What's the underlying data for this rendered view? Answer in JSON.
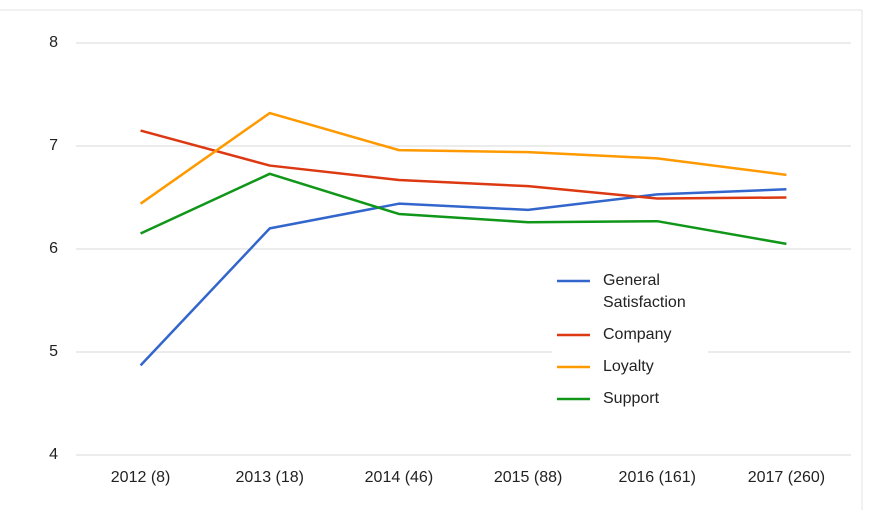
{
  "chart_data": {
    "type": "line",
    "categories": [
      "2012 (8)",
      "2013 (18)",
      "2014 (46)",
      "2015 (88)",
      "2016 (161)",
      "2017 (260)"
    ],
    "series": [
      {
        "name": "General Satisfaction",
        "color": "#3366cc",
        "values": [
          4.87,
          6.2,
          6.44,
          6.38,
          6.53,
          6.58
        ]
      },
      {
        "name": "Company",
        "color": "#dc3912",
        "values": [
          7.15,
          6.81,
          6.67,
          6.61,
          6.49,
          6.5
        ]
      },
      {
        "name": "Loyalty",
        "color": "#ff9900",
        "values": [
          6.44,
          7.32,
          6.96,
          6.94,
          6.88,
          6.72
        ]
      },
      {
        "name": "Support",
        "color": "#109618",
        "values": [
          6.15,
          6.73,
          6.34,
          6.26,
          6.27,
          6.05
        ]
      }
    ],
    "ylim": [
      4,
      8
    ],
    "yticks": [
      4,
      5,
      6,
      7,
      8
    ],
    "grid": true,
    "legend": "right"
  }
}
